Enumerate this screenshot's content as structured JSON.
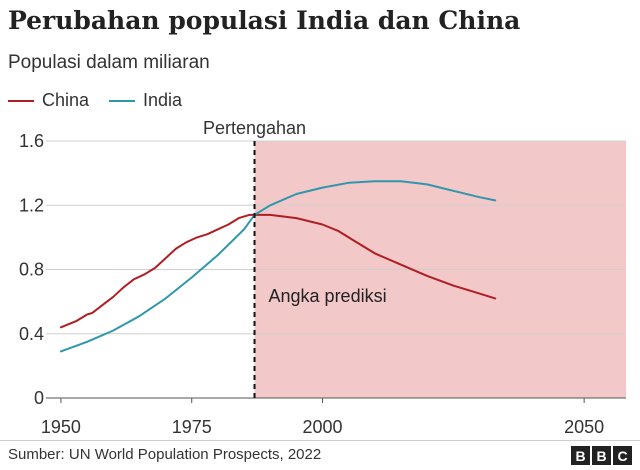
{
  "chart_data": {
    "type": "line",
    "title": "Perubahan populasi India dan China",
    "subtitle": "Populasi dalam miliaran",
    "ylim": [
      0,
      1.6
    ],
    "xlim": [
      1946,
      2058
    ],
    "y_ticks": [
      "1.6",
      "1.2",
      "0.8",
      "0.4",
      "0"
    ],
    "x_ticks": [
      "1950",
      "1975",
      "2000",
      "2050"
    ],
    "grid": true,
    "legend_position": "top-left",
    "series": [
      {
        "name": "China",
        "color": "#b01e23",
        "points": [
          [
            1950,
            0.44
          ],
          [
            1953,
            0.48
          ],
          [
            1955,
            0.52
          ],
          [
            1956,
            0.53
          ],
          [
            1958,
            0.58
          ],
          [
            1960,
            0.63
          ],
          [
            1962,
            0.69
          ],
          [
            1964,
            0.74
          ],
          [
            1966,
            0.77
          ],
          [
            1968,
            0.81
          ],
          [
            1970,
            0.87
          ],
          [
            1972,
            0.93
          ],
          [
            1974,
            0.97
          ],
          [
            1976,
            1.0
          ],
          [
            1978,
            1.02
          ],
          [
            1980,
            1.05
          ],
          [
            1982,
            1.08
          ],
          [
            1984,
            1.12
          ],
          [
            1986,
            1.14
          ],
          [
            1987,
            1.14
          ],
          [
            1990,
            1.14
          ],
          [
            1995,
            1.12
          ],
          [
            2000,
            1.08
          ],
          [
            2003,
            1.04
          ],
          [
            2006,
            0.98
          ],
          [
            2010,
            0.9
          ],
          [
            2015,
            0.83
          ],
          [
            2020,
            0.76
          ],
          [
            2025,
            0.7
          ],
          [
            2030,
            0.65
          ],
          [
            2033,
            0.62
          ]
        ]
      },
      {
        "name": "India",
        "color": "#3096ab",
        "points": [
          [
            1950,
            0.29
          ],
          [
            1955,
            0.35
          ],
          [
            1960,
            0.42
          ],
          [
            1965,
            0.51
          ],
          [
            1970,
            0.62
          ],
          [
            1975,
            0.75
          ],
          [
            1980,
            0.89
          ],
          [
            1985,
            1.05
          ],
          [
            1987,
            1.14
          ],
          [
            1990,
            1.2
          ],
          [
            1995,
            1.27
          ],
          [
            2000,
            1.31
          ],
          [
            2005,
            1.34
          ],
          [
            2010,
            1.35
          ],
          [
            2015,
            1.35
          ],
          [
            2020,
            1.33
          ],
          [
            2025,
            1.29
          ],
          [
            2030,
            1.25
          ],
          [
            2033,
            1.23
          ]
        ]
      }
    ],
    "midpoint": {
      "x": 1987,
      "label": "Pertengahan"
    },
    "projection": {
      "from": 1987,
      "to": 2058,
      "label": "Angka prediksi",
      "color": "#f2c8c9"
    }
  },
  "source": "Sumber: UN World Population Prospects, 2022",
  "logo": {
    "letters": [
      "B",
      "B",
      "C"
    ]
  }
}
